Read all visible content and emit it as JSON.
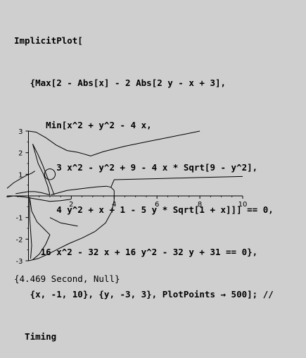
{
  "input_lines": [
    "ImplicitPlot[",
    "   {Max[2 - Abs[x] - 2 Abs[2 y - x + 3],",
    "      Min[x^2 + y^2 - 4 x,",
    "        3 x^2 - y^2 + 9 - 4 x * Sqrt[9 - y^2],",
    "        4 y^2 + x + 1 - 5 y * Sqrt[1 + x]]] == 0,",
    "     16 x^2 - 32 x + 16 y^2 - 32 y + 31 == 0},",
    "   {x, -1, 10}, {y, -3, 3}, PlotPoints → 500]; //",
    "  Timing"
  ],
  "output_text": "{4.469 Second, Null}",
  "chart_data": {
    "type": "line",
    "xlim": [
      -1,
      10
    ],
    "ylim": [
      -3,
      3
    ],
    "x_ticks": [
      2,
      4,
      6,
      8,
      10
    ],
    "y_ticks": [
      -3,
      -2,
      -1,
      1,
      2,
      3
    ],
    "grid": false,
    "series": [
      {
        "points": [
          [
            0,
            3
          ],
          [
            0.35,
            2.95
          ],
          [
            0.8,
            2.7
          ],
          [
            1.3,
            2.35
          ],
          [
            1.8,
            2.1
          ],
          [
            2.3,
            2.02
          ],
          [
            2.55,
            1.95
          ]
        ]
      },
      {
        "points": [
          [
            2.55,
            1.95
          ],
          [
            2.9,
            1.85
          ],
          [
            3.5,
            2.05
          ],
          [
            4.5,
            2.3
          ],
          [
            5.5,
            2.5
          ],
          [
            6.5,
            2.7
          ],
          [
            7.5,
            2.9
          ],
          [
            8,
            3
          ]
        ]
      },
      {
        "points": [
          [
            0.2,
            2.4
          ],
          [
            0.45,
            1.9
          ],
          [
            0.65,
            1.45
          ],
          [
            0.85,
            0.95
          ],
          [
            1.05,
            0.45
          ],
          [
            1.2,
            0.05
          ]
        ]
      },
      {
        "points": [
          [
            0.2,
            2.4
          ],
          [
            0.45,
            1.5
          ],
          [
            0.7,
            1.0
          ],
          [
            0.9,
            0.45
          ],
          [
            1.0,
            0.05
          ]
        ]
      },
      {
        "points": [
          [
            -1,
            0.35
          ],
          [
            -0.7,
            0.6
          ],
          [
            -0.4,
            0.78
          ],
          [
            -0.1,
            0.95
          ],
          [
            0.15,
            1.05
          ],
          [
            0.3,
            1.15
          ]
        ]
      },
      {
        "points": [
          [
            -0.6,
            0.1
          ],
          [
            -0.3,
            0.15
          ],
          [
            0,
            0.2
          ],
          [
            0.3,
            0.2
          ],
          [
            0.6,
            0.15
          ],
          [
            1.0,
            0.05
          ]
        ]
      },
      {
        "points": [
          [
            1.05,
            0.05
          ],
          [
            1.8,
            0.25
          ],
          [
            2.6,
            0.35
          ],
          [
            3.2,
            0.42
          ],
          [
            3.65,
            0.45
          ],
          [
            3.85,
            0.4
          ],
          [
            4.0,
            0.25
          ]
        ]
      },
      {
        "points": [
          [
            3.85,
            0.4
          ],
          [
            4.0,
            0.75
          ],
          [
            6,
            0.8
          ],
          [
            8,
            0.85
          ],
          [
            10,
            0.9
          ]
        ]
      },
      {
        "points": [
          [
            4,
            0.25
          ],
          [
            4,
            -0.2
          ],
          [
            3.9,
            -0.7
          ],
          [
            3.6,
            -1.25
          ],
          [
            3.1,
            -1.65
          ],
          [
            2.5,
            -1.95
          ],
          [
            1.9,
            -2.2
          ],
          [
            1.4,
            -2.45
          ],
          [
            0.9,
            -2.7
          ],
          [
            0.45,
            -2.9
          ],
          [
            0,
            -3
          ]
        ]
      },
      {
        "points": [
          [
            -1,
            -0.05
          ],
          [
            -0.7,
            0.0
          ],
          [
            -0.2,
            -0.05
          ],
          [
            0.4,
            -0.15
          ],
          [
            1.0,
            -0.25
          ],
          [
            1.5,
            -0.22
          ],
          [
            2.0,
            -0.15
          ]
        ]
      },
      {
        "points": [
          [
            0.05,
            -0.05
          ],
          [
            0.15,
            -0.7
          ],
          [
            0.4,
            -1.2
          ],
          [
            0.75,
            -1.55
          ],
          [
            1.0,
            -1.8
          ],
          [
            0.8,
            -2.25
          ],
          [
            0.5,
            -2.7
          ],
          [
            0.2,
            -2.95
          ]
        ]
      },
      {
        "points": [
          [
            0.05,
            -0.05
          ],
          [
            0.05,
            -0.9
          ],
          [
            0.1,
            -1.6
          ],
          [
            0.15,
            -2.3
          ],
          [
            0.1,
            -2.9
          ]
        ]
      },
      {
        "points": [
          [
            1.0,
            -1.0
          ],
          [
            1.5,
            -1.25
          ],
          [
            2.3,
            -1.4
          ]
        ]
      }
    ],
    "circle": {
      "cx": 1,
      "cy": 1,
      "r": 0.25
    }
  }
}
